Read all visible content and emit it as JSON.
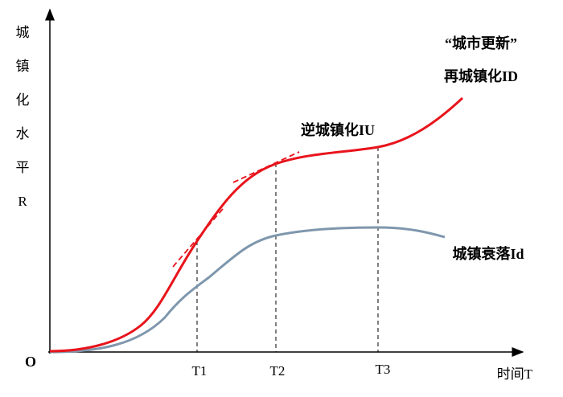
{
  "y_axis_label": [
    "城",
    "镇",
    "化",
    "水",
    "平",
    "R"
  ],
  "origin": "O",
  "x_axis_label": "时间T",
  "x_ticks": [
    "T1",
    "T2",
    "T3"
  ],
  "annotations": {
    "urban_renewal": "“城市更新”",
    "reurbanization": "再城镇化ID",
    "counter_urbanization": "逆城镇化IU",
    "urban_decline": "城镇衰落Id"
  }
}
